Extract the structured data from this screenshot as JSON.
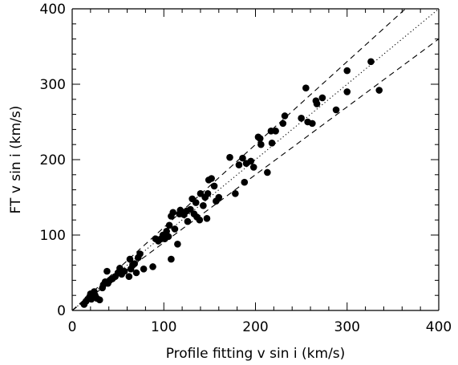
{
  "chart_data": {
    "type": "scatter",
    "title": "",
    "xlabel": "Profile fitting v sin i (km/s)",
    "ylabel": "FT v sin i (km/s)",
    "xlim": [
      0,
      400
    ],
    "ylim": [
      0,
      400
    ],
    "xticks": [
      0,
      100,
      200,
      300,
      400
    ],
    "yticks": [
      0,
      100,
      200,
      300,
      400
    ],
    "x_minor_step": 20,
    "y_minor_step": 20,
    "grid": false,
    "legend": "none",
    "colors": {
      "points": "#000000",
      "lines": "#000000",
      "axes": "#000000"
    },
    "reference_lines": [
      {
        "style": "dotted",
        "slope": 1.0,
        "intercept": 0
      },
      {
        "style": "dashed",
        "slope": 1.1,
        "intercept": 0
      },
      {
        "style": "dashed",
        "slope": 0.9,
        "intercept": 0
      }
    ],
    "series": [
      {
        "points": [
          [
            13,
            8
          ],
          [
            15,
            12
          ],
          [
            17,
            15
          ],
          [
            19,
            18
          ],
          [
            20,
            22
          ],
          [
            21,
            15
          ],
          [
            22,
            18
          ],
          [
            24,
            25
          ],
          [
            25,
            20
          ],
          [
            27,
            16
          ],
          [
            30,
            14
          ],
          [
            33,
            30
          ],
          [
            34,
            34
          ],
          [
            36,
            38
          ],
          [
            38,
            52
          ],
          [
            39,
            36
          ],
          [
            41,
            40
          ],
          [
            44,
            42
          ],
          [
            47,
            45
          ],
          [
            50,
            50
          ],
          [
            52,
            56
          ],
          [
            54,
            48
          ],
          [
            57,
            52
          ],
          [
            62,
            45
          ],
          [
            63,
            68
          ],
          [
            64,
            55
          ],
          [
            66,
            60
          ],
          [
            68,
            62
          ],
          [
            70,
            50
          ],
          [
            72,
            70
          ],
          [
            74,
            75
          ],
          [
            78,
            55
          ],
          [
            88,
            58
          ],
          [
            91,
            95
          ],
          [
            94,
            92
          ],
          [
            97,
            95
          ],
          [
            99,
            100
          ],
          [
            101,
            95
          ],
          [
            103,
            105
          ],
          [
            105,
            98
          ],
          [
            106,
            113
          ],
          [
            108,
            68
          ],
          [
            108,
            125
          ],
          [
            110,
            130
          ],
          [
            112,
            108
          ],
          [
            115,
            88
          ],
          [
            117,
            128
          ],
          [
            118,
            133
          ],
          [
            122,
            127
          ],
          [
            125,
            132
          ],
          [
            126,
            118
          ],
          [
            129,
            134
          ],
          [
            131,
            148
          ],
          [
            133,
            128
          ],
          [
            135,
            143
          ],
          [
            136,
            124
          ],
          [
            139,
            120
          ],
          [
            140,
            155
          ],
          [
            143,
            139
          ],
          [
            145,
            150
          ],
          [
            147,
            122
          ],
          [
            148,
            155
          ],
          [
            149,
            173
          ],
          [
            152,
            175
          ],
          [
            155,
            165
          ],
          [
            157,
            145
          ],
          [
            160,
            150
          ],
          [
            172,
            203
          ],
          [
            178,
            155
          ],
          [
            182,
            193
          ],
          [
            186,
            202
          ],
          [
            188,
            170
          ],
          [
            190,
            195
          ],
          [
            195,
            198
          ],
          [
            198,
            190
          ],
          [
            203,
            230
          ],
          [
            205,
            228
          ],
          [
            206,
            220
          ],
          [
            213,
            183
          ],
          [
            217,
            238
          ],
          [
            218,
            222
          ],
          [
            222,
            238
          ],
          [
            230,
            248
          ],
          [
            232,
            258
          ],
          [
            250,
            255
          ],
          [
            255,
            295
          ],
          [
            257,
            250
          ],
          [
            262,
            248
          ],
          [
            266,
            278
          ],
          [
            267,
            274
          ],
          [
            273,
            282
          ],
          [
            288,
            266
          ],
          [
            300,
            318
          ],
          [
            300,
            290
          ],
          [
            326,
            330
          ],
          [
            335,
            292
          ]
        ]
      }
    ]
  }
}
